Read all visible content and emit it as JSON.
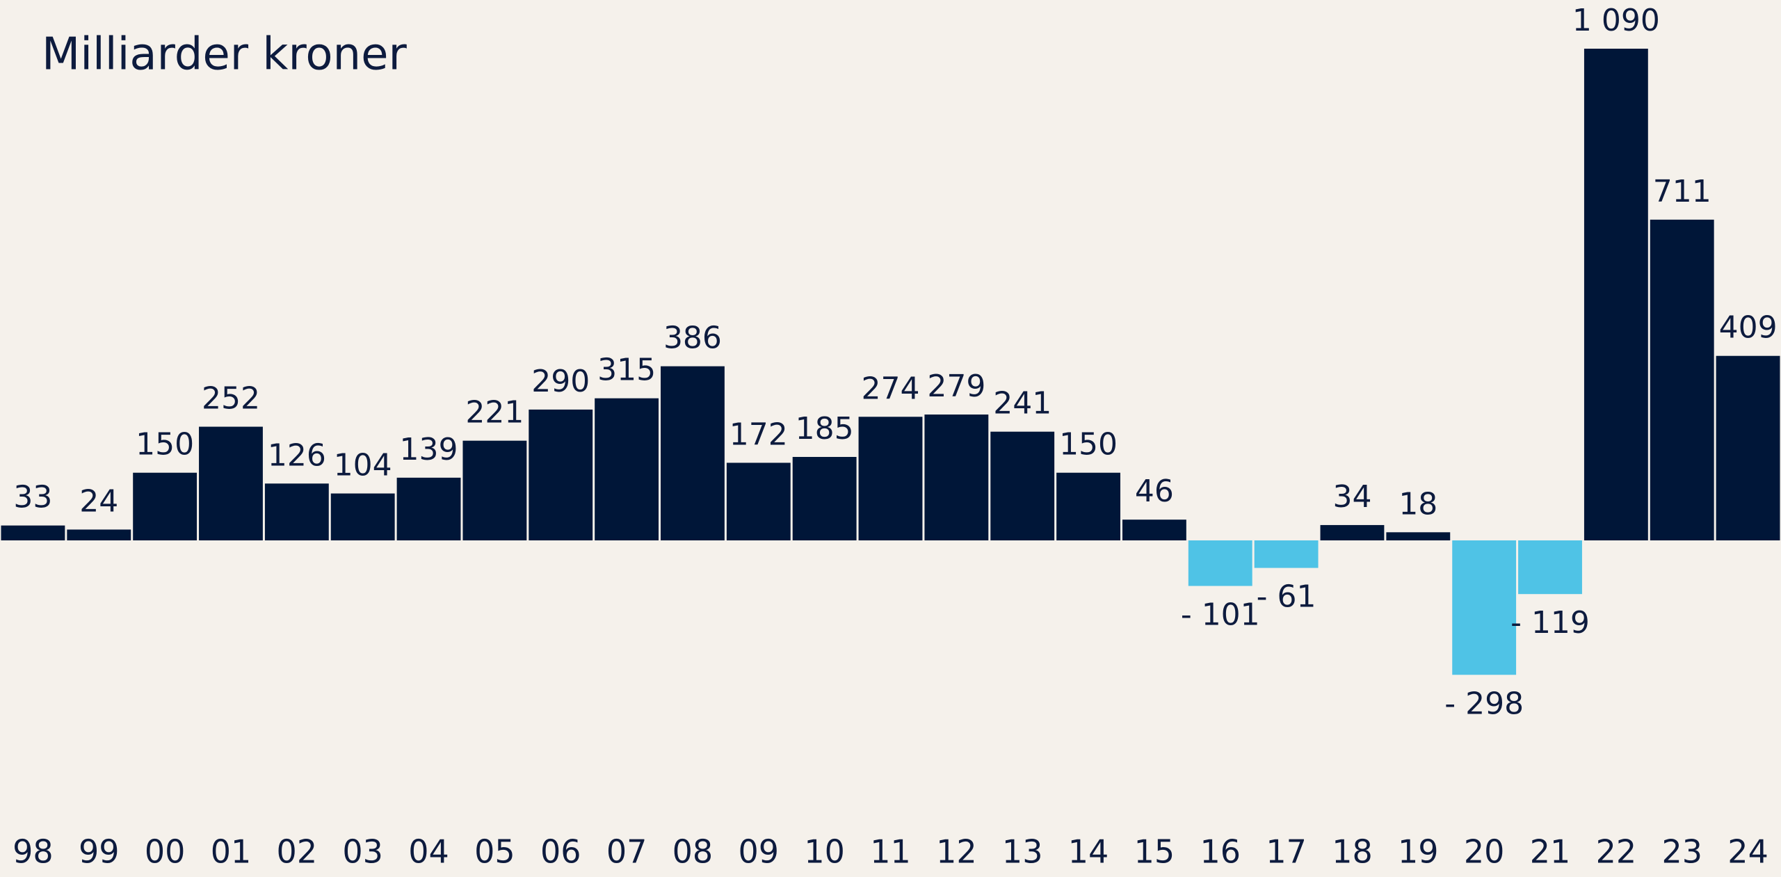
{
  "chart_data": {
    "type": "bar",
    "title": "Milliarder kroner",
    "categories": [
      "98",
      "99",
      "00",
      "01",
      "02",
      "03",
      "04",
      "05",
      "06",
      "07",
      "08",
      "09",
      "10",
      "11",
      "12",
      "13",
      "14",
      "15",
      "16",
      "17",
      "18",
      "19",
      "20",
      "21",
      "22",
      "23",
      "24"
    ],
    "values": [
      33,
      24,
      150,
      252,
      126,
      104,
      139,
      221,
      290,
      315,
      386,
      172,
      185,
      274,
      279,
      241,
      150,
      46,
      -101,
      -61,
      34,
      18,
      -298,
      -119,
      1090,
      711,
      409
    ],
    "value_labels": [
      "33",
      "24",
      "150",
      "252",
      "126",
      "104",
      "139",
      "221",
      "290",
      "315",
      "386",
      "172",
      "185",
      "274",
      "279",
      "241",
      "150",
      "46",
      "- 101",
      "- 61",
      "34",
      "18",
      "- 298",
      "- 119",
      "1 090",
      "711",
      "409"
    ],
    "color": "#001638",
    "negative_color": "#4fc3e6"
  }
}
